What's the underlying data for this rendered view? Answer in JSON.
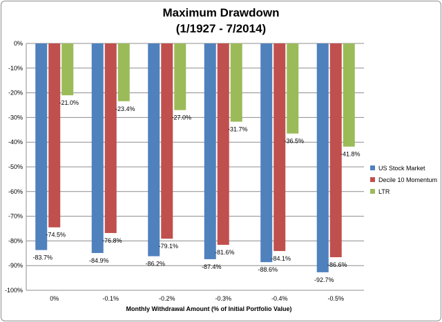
{
  "chart_data": {
    "type": "bar",
    "title": "Maximum Drawdown",
    "subtitle": "(1/1927 - 7/2014)",
    "xlabel": "Monthly Withdrawal Amount (% of Initial Portfolio Value)",
    "ylabel": "",
    "categories": [
      "0%",
      "-0.1%",
      "-0.2%",
      "-0.3%",
      "-0.4%",
      "-0.5%"
    ],
    "series": [
      {
        "name": "US Stock Market",
        "color": "#4f81bd",
        "values": [
          -83.7,
          -84.9,
          -86.2,
          -87.4,
          -88.6,
          -92.7
        ],
        "labels": [
          "-83.7%",
          "-84.9%",
          "-86.2%",
          "-87.4%",
          "-88.6%",
          "-92.7%"
        ]
      },
      {
        "name": "Decile 10 Momentum",
        "color": "#c0504d",
        "values": [
          -74.5,
          -76.8,
          -79.1,
          -81.6,
          -84.1,
          -86.6
        ],
        "labels": [
          "-74.5%",
          "-76.8%",
          "-79.1%",
          "-81.6%",
          "-84.1%",
          "-86.6%"
        ]
      },
      {
        "name": "LTR",
        "color": "#9bbb59",
        "values": [
          -21.0,
          -23.4,
          -27.0,
          -31.7,
          -36.5,
          -41.8
        ],
        "labels": [
          "-21.0%",
          "-23.4%",
          "-27.0%",
          "-31.7%",
          "-36.5%",
          "-41.8%"
        ]
      }
    ],
    "ylim": [
      -100,
      0
    ],
    "yticks": [
      0,
      -10,
      -20,
      -30,
      -40,
      -50,
      -60,
      -70,
      -80,
      -90,
      -100
    ],
    "ytick_labels": [
      "0%",
      "-10%",
      "-20%",
      "-30%",
      "-40%",
      "-50%",
      "-60%",
      "-70%",
      "-80%",
      "-90%",
      "-100%"
    ],
    "grid": true,
    "legend_position": "right"
  }
}
